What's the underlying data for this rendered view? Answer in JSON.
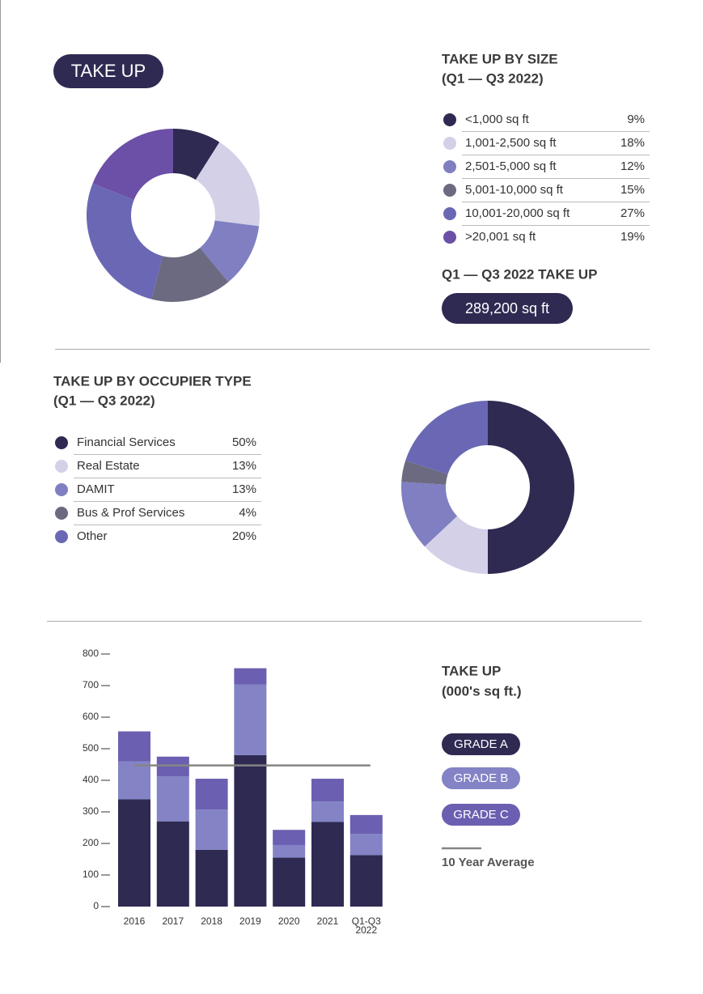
{
  "badge": "TAKE UP",
  "chart_data": [
    {
      "type": "pie",
      "title": "TAKE UP BY SIZE",
      "subtitle": "(Q1 — Q3 2022)",
      "categories": [
        "<1,000 sq ft",
        "1,001-2,500 sq ft",
        "2,501-5,000 sq ft",
        "5,001-10,000 sq ft",
        "10,001-20,000 sq ft",
        ">20,001 sq ft"
      ],
      "values": [
        9,
        18,
        12,
        15,
        27,
        19
      ],
      "value_labels": [
        "9%",
        "18%",
        "12%",
        "15%",
        "27%",
        "19%"
      ],
      "colors": [
        "#2e2a52",
        "#d4d0e8",
        "#7f7fc2",
        "#6b6a80",
        "#6a68b4",
        "#6c4fa6"
      ],
      "total_title": "Q1 — Q3 2022 TAKE UP",
      "total_label": "289,200 sq ft"
    },
    {
      "type": "pie",
      "title": "TAKE UP BY OCCUPIER TYPE",
      "subtitle": "(Q1 — Q3 2022)",
      "categories": [
        "Financial Services",
        "Real Estate",
        "DAMIT",
        "Bus & Prof Services",
        "Other"
      ],
      "values": [
        50,
        13,
        13,
        4,
        20
      ],
      "value_labels": [
        "50%",
        "13%",
        "13%",
        "4%",
        "20%"
      ],
      "colors": [
        "#2e2a52",
        "#d4d0e8",
        "#7f7fc2",
        "#6b6a80",
        "#6a68b4"
      ]
    },
    {
      "type": "bar",
      "stacked": true,
      "title": "TAKE UP",
      "subtitle": "(000's sq ft.)",
      "categories": [
        "2016",
        "2017",
        "2018",
        "2019",
        "2020",
        "2021",
        "Q1-Q3 2022"
      ],
      "series": [
        {
          "name": "GRADE A",
          "color": "#2e2a52",
          "values": [
            340,
            270,
            180,
            480,
            155,
            268,
            163
          ]
        },
        {
          "name": "GRADE B",
          "color": "#8383c6",
          "values": [
            120,
            142,
            127,
            223,
            40,
            65,
            67
          ]
        },
        {
          "name": "GRADE C",
          "color": "#6a5fb0",
          "values": [
            95,
            63,
            98,
            52,
            48,
            72,
            60
          ]
        }
      ],
      "average": {
        "name": "10 Year Average",
        "value": 447,
        "color": "#858585"
      },
      "ylim": [
        0,
        800
      ],
      "yticks": [
        0,
        100,
        200,
        300,
        400,
        500,
        600,
        700,
        800
      ]
    }
  ]
}
